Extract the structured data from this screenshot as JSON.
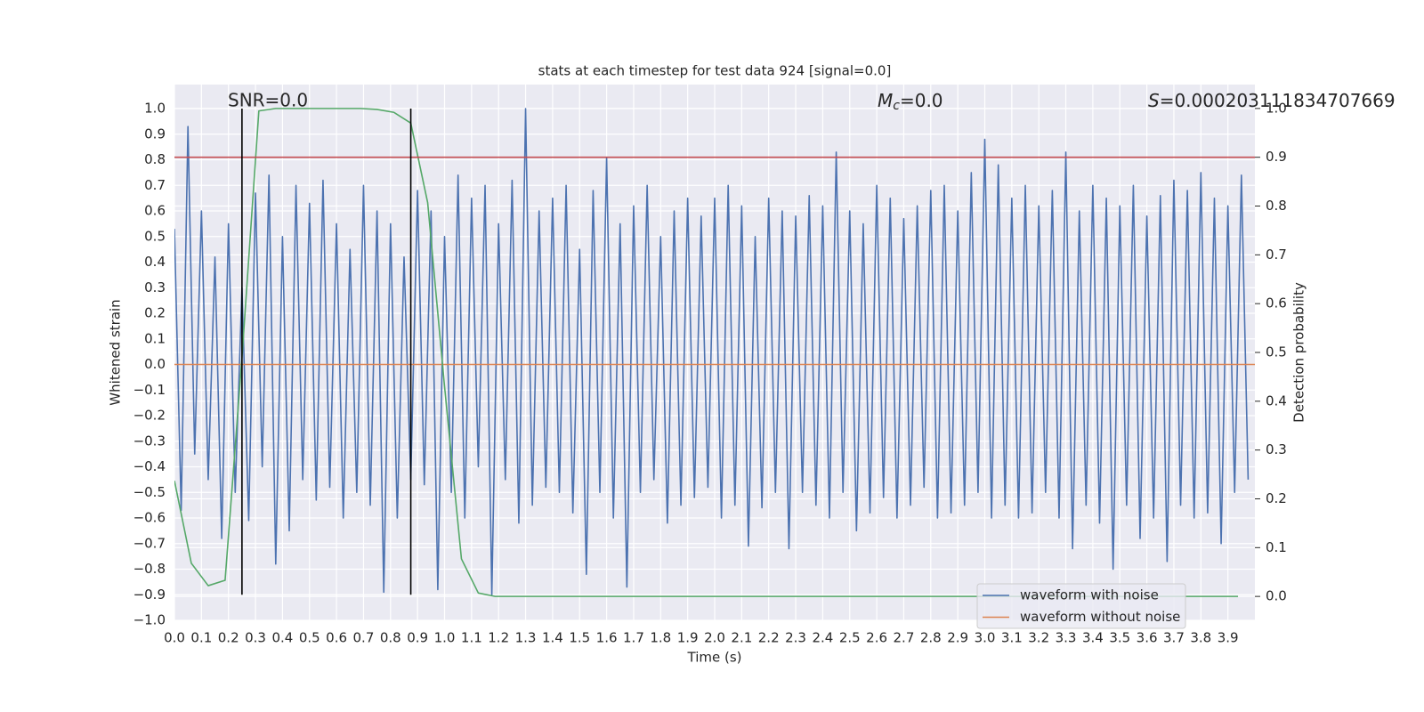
{
  "chart_data": {
    "type": "line",
    "title": "stats at each timestep for test data 924 [signal=0.0]",
    "xlabel": "Time (s)",
    "ylabel": "Whitened strain",
    "y2label": "Detection probability",
    "xlim": [
      0,
      4.0
    ],
    "ylim": [
      -1.0,
      1.094
    ],
    "y2lim": [
      -0.049,
      1.049
    ],
    "grid": true,
    "legend": "lower right",
    "xticks": [
      {
        "value": 0,
        "label": "0.0"
      },
      0.1,
      0.2,
      0.3,
      0.4,
      0.5,
      0.6,
      0.7,
      0.8,
      0.9,
      {
        "value": 1,
        "label": "1.0"
      },
      1.1,
      1.2,
      1.3,
      1.4,
      1.5,
      1.6,
      1.7,
      1.8,
      1.9,
      {
        "value": 2,
        "label": "2.0"
      },
      2.1,
      2.2,
      2.3,
      2.4,
      2.5,
      2.6,
      2.7,
      2.8,
      2.9,
      {
        "value": 3,
        "label": "3.0"
      },
      3.1,
      3.2,
      3.3,
      3.4,
      3.5,
      3.6,
      3.7,
      3.8,
      3.9
    ],
    "yticks": [
      {
        "value": -1,
        "label": "−1.0"
      },
      {
        "value": -0.9,
        "label": "−0.9"
      },
      {
        "value": -0.8,
        "label": "−0.8"
      },
      {
        "value": -0.7,
        "label": "−0.7"
      },
      {
        "value": -0.6,
        "label": "−0.6"
      },
      {
        "value": -0.5,
        "label": "−0.5"
      },
      {
        "value": -0.4,
        "label": "−0.4"
      },
      {
        "value": -0.3,
        "label": "−0.3"
      },
      {
        "value": -0.2,
        "label": "−0.2"
      },
      {
        "value": -0.1,
        "label": "−0.1"
      },
      {
        "value": 0,
        "label": "0.0"
      },
      0.1,
      0.2,
      0.3,
      0.4,
      0.5,
      0.6,
      0.7,
      0.8,
      0.9,
      {
        "value": 1,
        "label": "1.0"
      }
    ],
    "y2ticks": [
      {
        "value": 0,
        "label": "0.0"
      },
      0.1,
      0.2,
      0.3,
      0.4,
      0.5,
      0.6,
      0.7,
      0.8,
      0.9,
      {
        "value": 1,
        "label": "1.0"
      }
    ],
    "series": [
      {
        "name": "waveform with noise",
        "color": "#4c72b0",
        "x": [
          0,
          0.025,
          0.05,
          0.075,
          0.1,
          0.125,
          0.15,
          0.175,
          0.2,
          0.225,
          0.25,
          0.275,
          0.3,
          0.325,
          0.35,
          0.375,
          0.4,
          0.425,
          0.45,
          0.475,
          0.5,
          0.525,
          0.55,
          0.575,
          0.6,
          0.625,
          0.65,
          0.675,
          0.7,
          0.725,
          0.75,
          0.775,
          0.8,
          0.825,
          0.85,
          0.875,
          0.9,
          0.925,
          0.95,
          0.975,
          1,
          1.025,
          1.05,
          1.075,
          1.1,
          1.125,
          1.15,
          1.175,
          1.2,
          1.225,
          1.25,
          1.275,
          1.3,
          1.325,
          1.35,
          1.375,
          1.4,
          1.425,
          1.45,
          1.475,
          1.5,
          1.525,
          1.55,
          1.575,
          1.6,
          1.625,
          1.65,
          1.675,
          1.7,
          1.725,
          1.75,
          1.775,
          1.8,
          1.825,
          1.85,
          1.875,
          1.9,
          1.925,
          1.95,
          1.975,
          2,
          2.025,
          2.05,
          2.075,
          2.1,
          2.125,
          2.15,
          2.175,
          2.2,
          2.225,
          2.25,
          2.275,
          2.3,
          2.325,
          2.35,
          2.375,
          2.4,
          2.425,
          2.45,
          2.475,
          2.5,
          2.525,
          2.55,
          2.575,
          2.6,
          2.625,
          2.65,
          2.675,
          2.7,
          2.725,
          2.75,
          2.775,
          2.8,
          2.825,
          2.85,
          2.875,
          2.9,
          2.925,
          2.95,
          2.975,
          3,
          3.025,
          3.05,
          3.075,
          3.1,
          3.125,
          3.15,
          3.175,
          3.2,
          3.225,
          3.25,
          3.275,
          3.3,
          3.325,
          3.35,
          3.375,
          3.4,
          3.425,
          3.45,
          3.475,
          3.5,
          3.525,
          3.55,
          3.575,
          3.6,
          3.625,
          3.65,
          3.675,
          3.7,
          3.725,
          3.75,
          3.775,
          3.8,
          3.825,
          3.85,
          3.875,
          3.9,
          3.925,
          3.95,
          3.975
        ],
        "values": [
          0.53,
          -0.57,
          0.93,
          -0.35,
          0.6,
          -0.45,
          0.42,
          -0.68,
          0.55,
          -0.5,
          0.3,
          -0.61,
          0.67,
          -0.4,
          0.74,
          -0.78,
          0.5,
          -0.65,
          0.7,
          -0.45,
          0.63,
          -0.53,
          0.72,
          -0.48,
          0.55,
          -0.6,
          0.45,
          -0.5,
          0.7,
          -0.55,
          0.6,
          -0.89,
          0.55,
          -0.6,
          0.42,
          -0.45,
          0.68,
          -0.47,
          0.6,
          -0.88,
          0.5,
          -0.5,
          0.74,
          -0.6,
          0.65,
          -0.4,
          0.7,
          -0.9,
          0.55,
          -0.45,
          0.72,
          -0.62,
          1.0,
          -0.55,
          0.6,
          -0.48,
          0.65,
          -0.5,
          0.7,
          -0.58,
          0.45,
          -0.82,
          0.68,
          -0.5,
          0.81,
          -0.6,
          0.55,
          -0.87,
          0.62,
          -0.5,
          0.7,
          -0.45,
          0.5,
          -0.62,
          0.6,
          -0.55,
          0.65,
          -0.52,
          0.58,
          -0.48,
          0.65,
          -0.6,
          0.7,
          -0.55,
          0.62,
          -0.71,
          0.5,
          -0.56,
          0.65,
          -0.5,
          0.6,
          -0.72,
          0.58,
          -0.5,
          0.66,
          -0.55,
          0.62,
          -0.6,
          0.83,
          -0.5,
          0.6,
          -0.65,
          0.55,
          -0.58,
          0.7,
          -0.52,
          0.65,
          -0.6,
          0.57,
          -0.55,
          0.62,
          -0.48,
          0.68,
          -0.6,
          0.7,
          -0.58,
          0.6,
          -0.55,
          0.75,
          -0.5,
          0.88,
          -0.6,
          0.78,
          -0.55,
          0.65,
          -0.6,
          0.7,
          -0.58,
          0.62,
          -0.5,
          0.68,
          -0.6,
          0.83,
          -0.72,
          0.6,
          -0.55,
          0.7,
          -0.62,
          0.65,
          -0.8,
          0.62,
          -0.55,
          0.7,
          -0.68,
          0.58,
          -0.6,
          0.66,
          -0.77,
          0.72,
          -0.55,
          0.68,
          -0.6,
          0.75,
          -0.58,
          0.65,
          -0.7,
          0.62,
          -0.5,
          0.74,
          -0.45
        ]
      },
      {
        "name": "waveform without noise",
        "color": "#dd8452",
        "x": [
          0,
          4.0
        ],
        "values": [
          0,
          0
        ]
      },
      {
        "color": "#55a868",
        "axis": "y2",
        "x": [
          0,
          0.0625,
          0.125,
          0.1875,
          0.25,
          0.3125,
          0.375,
          0.4375,
          0.5,
          0.5625,
          0.625,
          0.6875,
          0.75,
          0.8125,
          0.875,
          0.9375,
          1,
          1.0625,
          1.125,
          1.1875,
          1.25,
          1.3125,
          1.375,
          1.4375,
          1.5,
          1.5625,
          1.625,
          1.6875,
          1.75,
          1.8125,
          1.875,
          1.9375,
          2,
          2.0625,
          2.125,
          2.1875,
          2.25,
          2.3125,
          2.375,
          2.4375,
          2.5,
          2.5625,
          2.625,
          2.6875,
          2.75,
          2.8125,
          2.875,
          2.9375,
          3,
          3.0625,
          3.125,
          3.1875,
          3.25,
          3.3125,
          3.375,
          3.4375,
          3.5,
          3.5625,
          3.625,
          3.6875,
          3.75,
          3.8125,
          3.875,
          3.9375
        ],
        "values": [
          0.237,
          0.068,
          0.022,
          0.033,
          0.49,
          0.995,
          1.0,
          1.0,
          1.0,
          1.0,
          1.0,
          1.0,
          0.998,
          0.992,
          0.97,
          0.807,
          0.43,
          0.077,
          0.007,
          0,
          0,
          0,
          0,
          0,
          0,
          0,
          0,
          0,
          0,
          0,
          0,
          0,
          0,
          0,
          0,
          0,
          0,
          0,
          0,
          0,
          0,
          0,
          0,
          0,
          0,
          0,
          0,
          0,
          0,
          0,
          0,
          0,
          0,
          0,
          0,
          0,
          0,
          0,
          0,
          0,
          0,
          0,
          0,
          0
        ]
      }
    ],
    "hline": {
      "value": 0.9,
      "axis": "y2",
      "color": "#c44e52"
    },
    "vlines": {
      "x": [
        0.25,
        0.875
      ],
      "ymin": -0.9,
      "ymax": 1.0,
      "color": "#000000"
    },
    "annotations": {
      "snr": {
        "text": "SNR=0.0"
      },
      "mc": {
        "main": "M",
        "sub": "c",
        "text": "=0.0"
      },
      "s": {
        "main": "S",
        "text": "=0.000203111834707669"
      }
    }
  }
}
